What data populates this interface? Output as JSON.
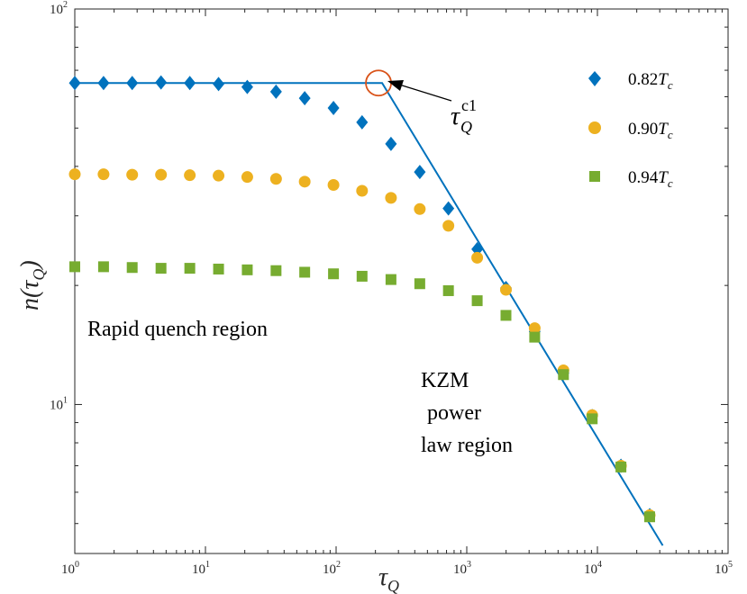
{
  "chart_data": {
    "type": "scatter",
    "xscale": "log",
    "yscale": "log",
    "xlim": [
      1,
      100000
    ],
    "ylim": [
      4.2,
      100
    ],
    "xlabel": {
      "main": "τ",
      "sub": "Q"
    },
    "ylabel": {
      "pre": "n(τ",
      "sub": "Q",
      "post": ")"
    },
    "xticks": [
      {
        "base": "10",
        "exp": "0",
        "value": 1
      },
      {
        "base": "10",
        "exp": "1",
        "value": 10
      },
      {
        "base": "10",
        "exp": "2",
        "value": 100
      },
      {
        "base": "10",
        "exp": "3",
        "value": 1000
      },
      {
        "base": "10",
        "exp": "4",
        "value": 10000
      },
      {
        "base": "10",
        "exp": "5",
        "value": 100000
      }
    ],
    "yticks": [
      {
        "base": "10",
        "exp": "1",
        "value": 10
      },
      {
        "base": "10",
        "exp": "2",
        "value": 100
      }
    ],
    "x": [
      1,
      1.66,
      2.75,
      4.57,
      7.59,
      12.6,
      20.9,
      34.7,
      57.5,
      95.5,
      158,
      263,
      437,
      724,
      1202,
      1995,
      3311,
      5495,
      9120,
      15136,
      25119
    ],
    "series": [
      {
        "name": "0.82T_c",
        "legend": {
          "num": "0.82",
          "var": "T",
          "sub": "c"
        },
        "marker": "diamond",
        "color": "#0072BD",
        "values": [
          65,
          65,
          65,
          65.2,
          65,
          64.6,
          63.5,
          61.8,
          59.5,
          56.2,
          51.7,
          45.6,
          38.7,
          31.3,
          24.7,
          19.7,
          15.3,
          12.0,
          9.35,
          7.0,
          5.25
        ]
      },
      {
        "name": "0.90T_c",
        "legend": {
          "num": "0.90",
          "var": "T",
          "sub": "c"
        },
        "marker": "circle",
        "color": "#EDB120",
        "values": [
          38.2,
          38.2,
          38.1,
          38.1,
          38,
          37.9,
          37.6,
          37.2,
          36.6,
          35.9,
          34.7,
          33.3,
          31.2,
          28.3,
          23.5,
          19.5,
          15.6,
          12.2,
          9.4,
          7.0,
          5.25
        ]
      },
      {
        "name": "0.94T_c",
        "legend": {
          "num": "0.94",
          "var": "T",
          "sub": "c"
        },
        "marker": "square",
        "color": "#77AC30",
        "values": [
          22.3,
          22.3,
          22.2,
          22.1,
          22.1,
          22.0,
          21.9,
          21.8,
          21.6,
          21.4,
          21.1,
          20.7,
          20.2,
          19.4,
          18.3,
          16.8,
          14.8,
          11.9,
          9.2,
          6.95,
          5.2
        ]
      }
    ],
    "fit_line": {
      "color": "#0072BD",
      "points": [
        [
          1,
          65
        ],
        [
          225,
          65
        ],
        [
          31623,
          4.4
        ]
      ]
    },
    "highlight": {
      "label": "τ_Q^c1",
      "x": 225,
      "y": 65,
      "color": "#D95319"
    },
    "annotations": {
      "rapid": "Rapid quench region",
      "kzm_line1": "KZM",
      "kzm_line2": "power",
      "kzm_line3": "law region",
      "tauq_base": "τ",
      "tauq_sub": "Q",
      "tauq_sup": "c1"
    }
  }
}
